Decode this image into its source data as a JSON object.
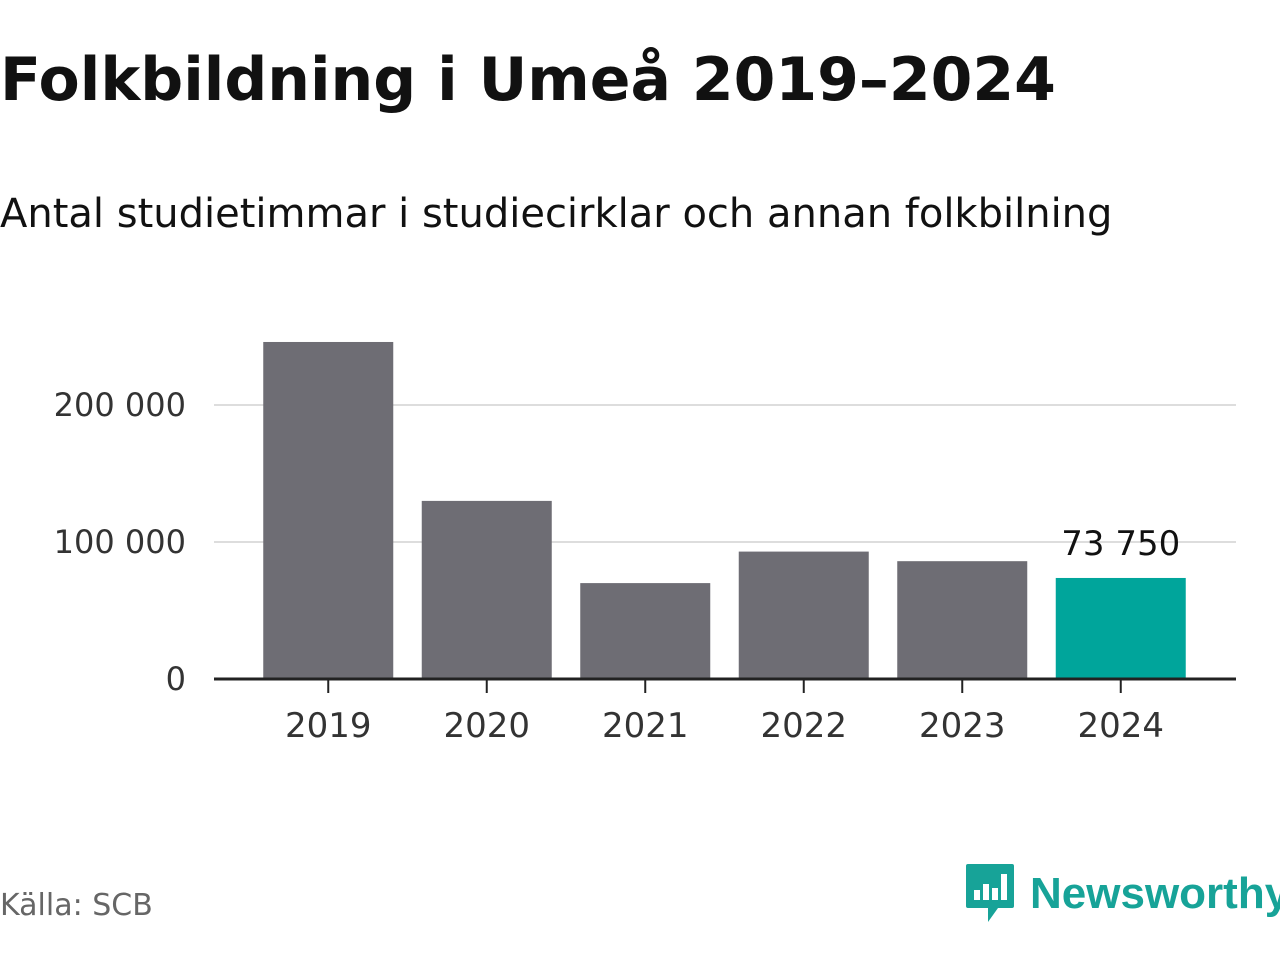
{
  "header": {
    "title": "Folkbildning i Umeå 2019–2024",
    "subtitle": "Antal studietimmar i studiecirklar och annan folkbilning"
  },
  "footer": {
    "source": "Källa: SCB",
    "brand": "Newsworthy",
    "brand_icon": "newsworthy-chart-bubble-icon"
  },
  "colors": {
    "bar": "#6e6d74",
    "highlight": "#00a59b",
    "grid": "#dddddd",
    "axis": "#222222",
    "text": "#111111",
    "source": "#666666",
    "brand": "#17a398"
  },
  "chart_data": {
    "type": "bar",
    "categories": [
      "2019",
      "2020",
      "2021",
      "2022",
      "2023",
      "2024"
    ],
    "values": [
      246000,
      130000,
      70000,
      93000,
      86000,
      73750
    ],
    "highlight_index": 5,
    "data_labels": [
      "",
      "",
      "",
      "",
      "",
      "73 750"
    ],
    "ylim": [
      0,
      250000
    ],
    "yticks": [
      0,
      100000,
      200000
    ],
    "ytick_labels": [
      "0",
      "100 000",
      "200 000"
    ],
    "grid": true,
    "xlabel": "",
    "ylabel": ""
  }
}
